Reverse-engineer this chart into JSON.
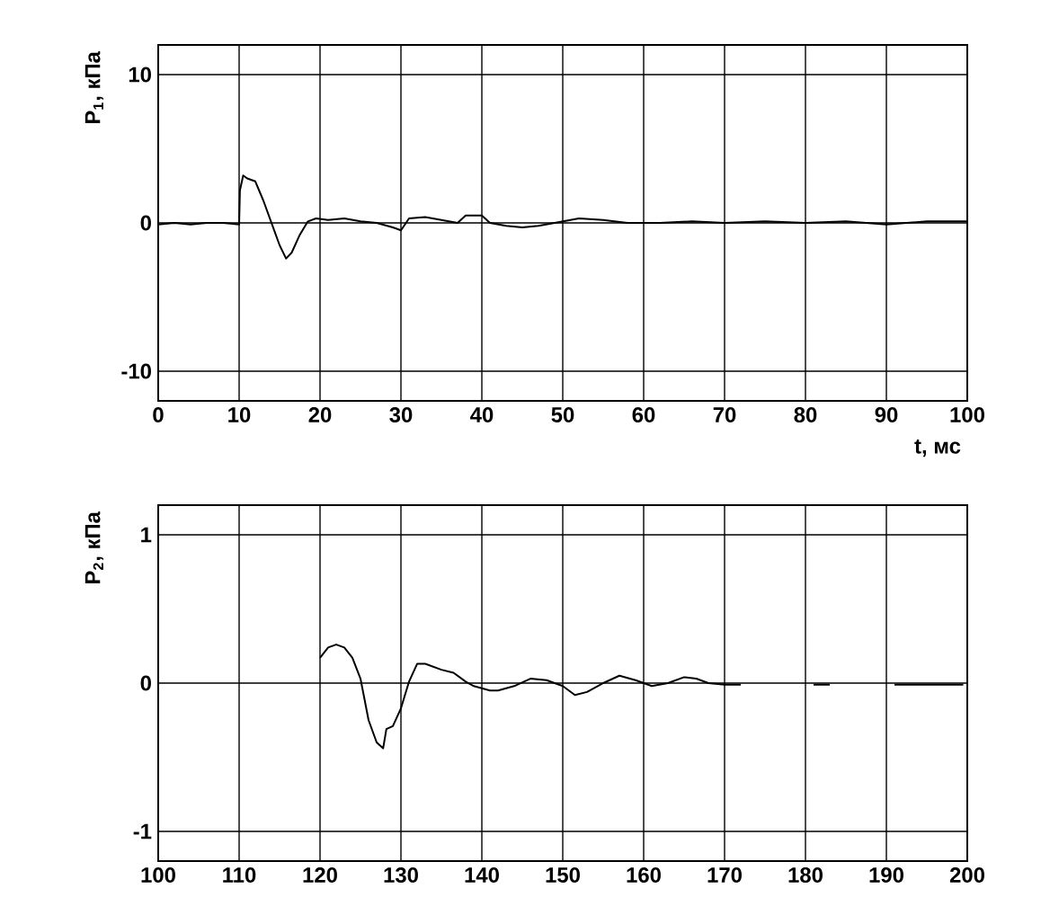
{
  "chart_data": [
    {
      "type": "line",
      "xlabel": "t, мс",
      "ylabel": "P$_{1}$, кПа",
      "xlim": [
        0,
        100
      ],
      "ylim": [
        -12,
        12
      ],
      "xticks": [
        0,
        10,
        20,
        30,
        40,
        50,
        60,
        70,
        80,
        90,
        100
      ],
      "yticks": [
        -10,
        0,
        10
      ],
      "grid": true,
      "series": [
        {
          "color": "#000000",
          "x": [
            0,
            2,
            4,
            6,
            8,
            10,
            10.1,
            10.5,
            11,
            12,
            13,
            14,
            15,
            15.8,
            16.5,
            17.5,
            18.5,
            19.5,
            21,
            23,
            25,
            27,
            29,
            30,
            31,
            33,
            35,
            37,
            38,
            40,
            41,
            43,
            45,
            47,
            49,
            52,
            55,
            58,
            62,
            66,
            70,
            75,
            80,
            85,
            90,
            95,
            100
          ],
          "values": [
            -0.1,
            0,
            -0.1,
            0,
            0,
            -0.1,
            2.2,
            3.2,
            3.0,
            2.8,
            1.5,
            0,
            -1.5,
            -2.4,
            -2.0,
            -0.8,
            0.1,
            0.3,
            0.2,
            0.3,
            0.1,
            0,
            -0.3,
            -0.5,
            0.3,
            0.4,
            0.2,
            0,
            0.5,
            0.5,
            0,
            -0.2,
            -0.3,
            -0.2,
            0,
            0.3,
            0.2,
            0,
            0,
            0.1,
            0,
            0.1,
            0,
            0.1,
            -0.1,
            0.1,
            0.1
          ]
        }
      ]
    },
    {
      "type": "line",
      "ylabel": "P$_{2}$, кПа",
      "xlim": [
        100,
        200
      ],
      "ylim": [
        -1.2,
        1.2
      ],
      "xticks": [
        100,
        110,
        120,
        130,
        140,
        150,
        160,
        170,
        180,
        190,
        200
      ],
      "yticks": [
        -1,
        0,
        1
      ],
      "grid": true,
      "series": [
        {
          "color": "#000000",
          "x": [
            120,
            121,
            122,
            123,
            124,
            125,
            126,
            127,
            127.8,
            128.2,
            129,
            130,
            131,
            132,
            133,
            135,
            136.5,
            138,
            139,
            141,
            142,
            144,
            146,
            148,
            150,
            151.5,
            153,
            155,
            157,
            159,
            161,
            163,
            165,
            166.5,
            168,
            170,
            172,
            176,
            181,
            183,
            187,
            191,
            199.5
          ],
          "values": [
            0.17,
            0.24,
            0.26,
            0.24,
            0.17,
            0.03,
            -0.25,
            -0.4,
            -0.44,
            -0.31,
            -0.29,
            -0.17,
            0.01,
            0.13,
            0.13,
            0.09,
            0.07,
            0.01,
            -0.02,
            -0.05,
            -0.05,
            -0.02,
            0.03,
            0.02,
            -0.02,
            -0.08,
            -0.06,
            0,
            0.05,
            0.02,
            -0.02,
            0,
            0.04,
            0.03,
            0,
            -0.01,
            -0.01,
            null,
            -0.01,
            -0.01,
            null,
            -0.01,
            -0.01
          ]
        }
      ]
    }
  ]
}
